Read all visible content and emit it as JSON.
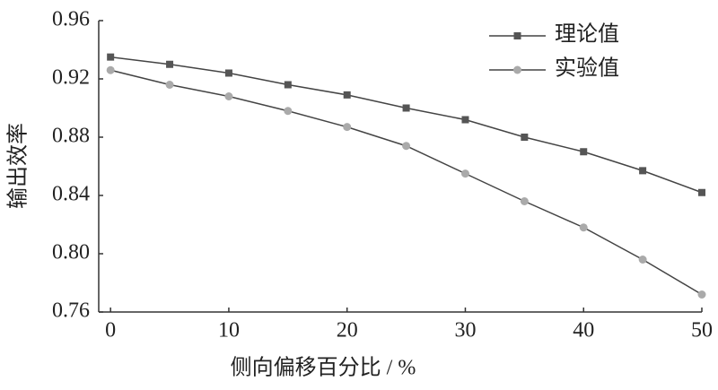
{
  "chart_data": {
    "type": "line",
    "xlabel": "侧向偏移百分比 / %",
    "ylabel": "输出效率",
    "x": [
      0,
      5,
      10,
      15,
      20,
      25,
      30,
      35,
      40,
      45,
      50
    ],
    "series": [
      {
        "name": "理论值",
        "color": "#555555",
        "marker": "square",
        "values": [
          0.935,
          0.93,
          0.924,
          0.916,
          0.909,
          0.9,
          0.892,
          0.88,
          0.87,
          0.857,
          0.842
        ]
      },
      {
        "name": "实验值",
        "color": "#aaaaaa",
        "marker": "circle",
        "values": [
          0.926,
          0.916,
          0.908,
          0.898,
          0.887,
          0.874,
          0.855,
          0.836,
          0.818,
          0.796,
          0.772
        ]
      }
    ],
    "xlim": [
      -1,
      50
    ],
    "xticks": [
      0,
      10,
      20,
      30,
      40,
      50
    ],
    "ylim": [
      0.76,
      0.96
    ],
    "yticks": [
      0.76,
      {
        "value": 0.8,
        "label": "0.80"
      },
      0.84,
      0.88,
      0.92,
      0.96
    ],
    "legend": "top-right",
    "grid": false
  }
}
